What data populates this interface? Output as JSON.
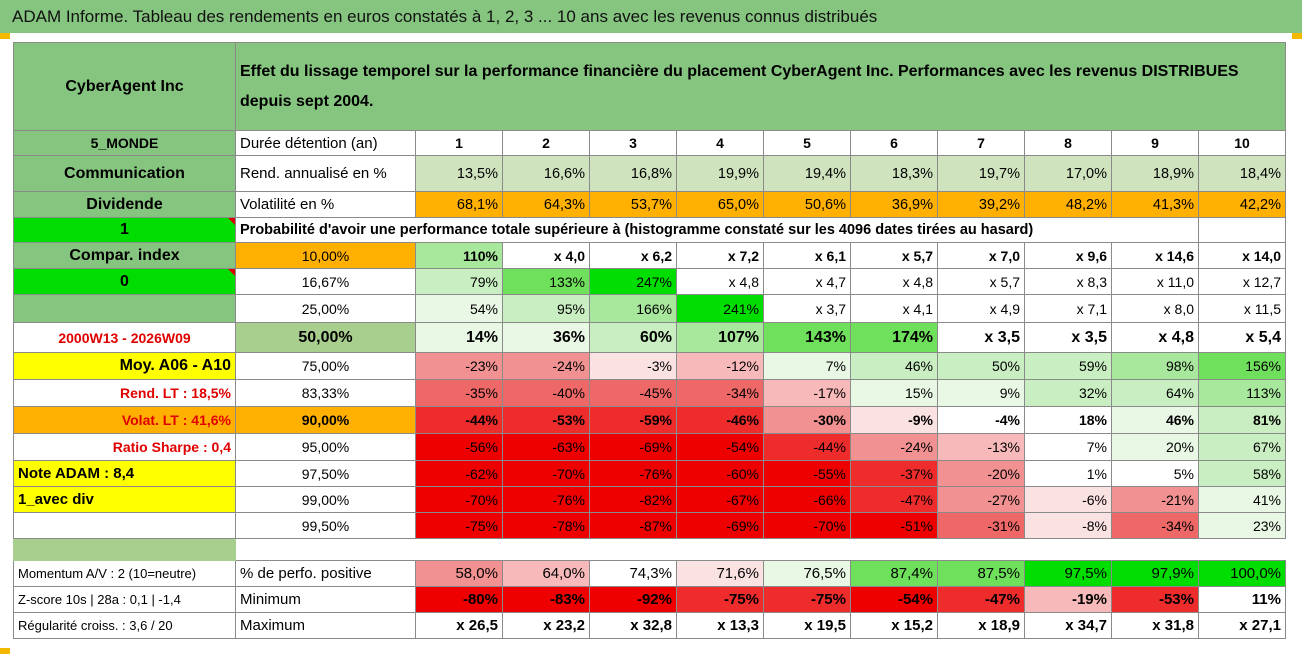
{
  "title": "ADAM Informe. Tableau des rendements en euros constatés à 1, 2, 3 ... 10 ans avec les revenus connus distribués",
  "header": {
    "company": "CyberAgent Inc",
    "description": "Effet du lissage temporel sur la performance financière du placement CyberAgent Inc. Performances avec les revenus DISTRIBUES depuis sept 2004."
  },
  "rows": [
    {
      "left": "5_MONDE",
      "label": "Durée détention (an)",
      "cells": [
        "1",
        "2",
        "3",
        "4",
        "5",
        "6",
        "7",
        "8",
        "9",
        "10"
      ]
    },
    {
      "left": "Communication",
      "label": "Rend. annualisé en %",
      "cells": [
        "13,5%",
        "16,6%",
        "16,8%",
        "19,9%",
        "19,4%",
        "18,3%",
        "19,7%",
        "17,0%",
        "18,9%",
        "18,4%"
      ]
    },
    {
      "left": "Dividende",
      "label": "Volatilité en %",
      "cells": [
        "68,1%",
        "64,3%",
        "53,7%",
        "65,0%",
        "50,6%",
        "36,9%",
        "39,2%",
        "48,2%",
        "41,3%",
        "42,2%"
      ]
    },
    {
      "left": "1",
      "label": "Probabilité d'avoir une performance totale supérieure à (histogramme constaté sur les 4096 dates tirées au hasard)",
      "cells": []
    },
    {
      "left": "Compar. index",
      "label": "10,00%",
      "cells": [
        "110%",
        "x 4,0",
        "x 6,2",
        "x 7,2",
        "x 6,1",
        "x 5,7",
        "x 7,0",
        "x 9,6",
        "x 14,6",
        "x 14,0"
      ]
    },
    {
      "left": "0",
      "label": "16,67%",
      "cells": [
        "79%",
        "133%",
        "247%",
        "x 4,8",
        "x 4,7",
        "x 4,8",
        "x 5,7",
        "x 8,3",
        "x 11,0",
        "x 12,7"
      ]
    },
    {
      "left": "",
      "label": "25,00%",
      "cells": [
        "54%",
        "95%",
        "166%",
        "241%",
        "x 3,7",
        "x 4,1",
        "x 4,9",
        "x 7,1",
        "x 8,0",
        "x 11,5"
      ]
    },
    {
      "left": "2000W13 - 2026W09",
      "label": "50,00%",
      "cells": [
        "14%",
        "36%",
        "60%",
        "107%",
        "143%",
        "174%",
        "x 3,5",
        "x 3,5",
        "x 4,8",
        "x 5,4"
      ]
    },
    {
      "left": "Moy. A06 - A10",
      "label": "75,00%",
      "cells": [
        "-23%",
        "-24%",
        "-3%",
        "-12%",
        "7%",
        "46%",
        "50%",
        "59%",
        "98%",
        "156%"
      ]
    },
    {
      "left": "Rend. LT :    18,5%",
      "label": "83,33%",
      "cells": [
        "-35%",
        "-40%",
        "-45%",
        "-34%",
        "-17%",
        "15%",
        "9%",
        "32%",
        "64%",
        "113%"
      ]
    },
    {
      "left": "Volat. LT :    41,6%",
      "label": "90,00%",
      "cells": [
        "-44%",
        "-53%",
        "-59%",
        "-46%",
        "-30%",
        "-9%",
        "-4%",
        "18%",
        "46%",
        "81%"
      ]
    },
    {
      "left": "Ratio Sharpe :    0,4",
      "label": "95,00%",
      "cells": [
        "-56%",
        "-63%",
        "-69%",
        "-54%",
        "-44%",
        "-24%",
        "-13%",
        "7%",
        "20%",
        "67%"
      ]
    },
    {
      "left": "Note ADAM : 8,4",
      "label": "97,50%",
      "cells": [
        "-62%",
        "-70%",
        "-76%",
        "-60%",
        "-55%",
        "-37%",
        "-20%",
        "1%",
        "5%",
        "58%"
      ]
    },
    {
      "left": "1_avec div",
      "label": "99,00%",
      "cells": [
        "-70%",
        "-76%",
        "-82%",
        "-67%",
        "-66%",
        "-47%",
        "-27%",
        "-6%",
        "-21%",
        "41%"
      ]
    },
    {
      "left": "",
      "label": "99,50%",
      "cells": [
        "-75%",
        "-78%",
        "-87%",
        "-69%",
        "-70%",
        "-51%",
        "-31%",
        "-8%",
        "-34%",
        "23%"
      ]
    },
    {
      "left": "Momentum A/V : 2 (10=neutre)",
      "label": "% de perfo. positive",
      "cells": [
        "58,0%",
        "64,0%",
        "74,3%",
        "71,6%",
        "76,5%",
        "87,4%",
        "87,5%",
        "97,5%",
        "97,9%",
        "100,0%"
      ]
    },
    {
      "left": "Z-score 10s | 28a : 0,1 | -1,4",
      "label": "Minimum",
      "cells": [
        "-80%",
        "-83%",
        "-92%",
        "-75%",
        "-75%",
        "-54%",
        "-47%",
        "-19%",
        "-53%",
        "11%"
      ]
    },
    {
      "left": "Régularité croiss. : 3,6 / 20",
      "label": "Maximum",
      "cells": [
        "x 26,5",
        "x 23,2",
        "x 32,8",
        "x 13,3",
        "x 19,5",
        "x 15,2",
        "x 18,9",
        "x 34,7",
        "x 31,8",
        "x 27,1"
      ]
    }
  ],
  "colors": {
    "header_green": "#86c57f",
    "bright_green": "#00dd00",
    "yellow": "#ffff00",
    "orange": "#ffb000",
    "sage": "#a9cf8f",
    "light_sage": "#cfe3bf",
    "deep_red": "#ee0000",
    "label_red": "#e00000"
  }
}
